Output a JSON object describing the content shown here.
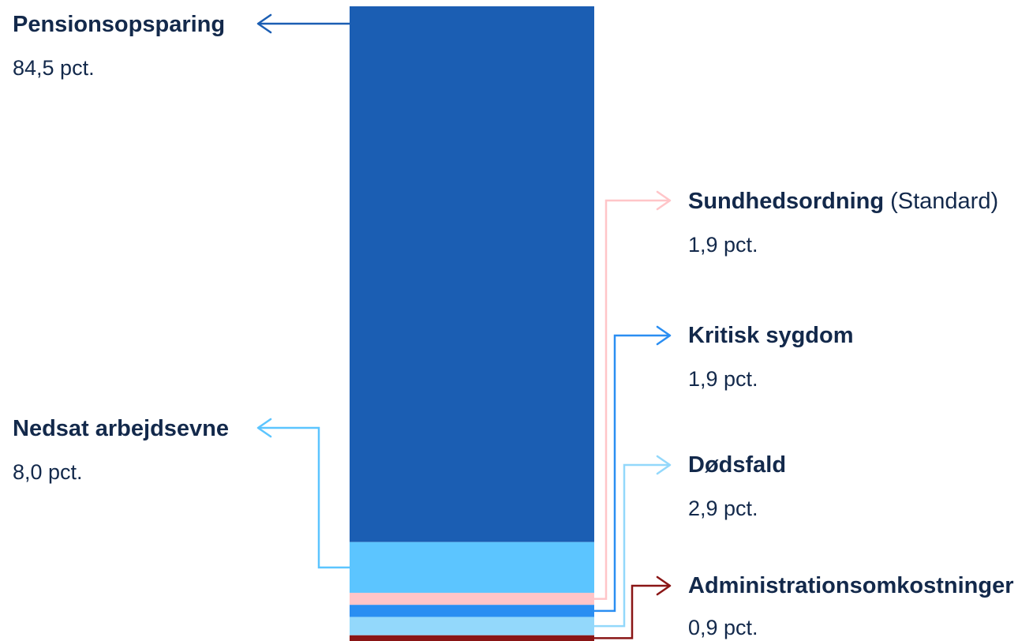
{
  "chart_data": {
    "type": "bar",
    "stacked": true,
    "unit": "pct.",
    "segments": [
      {
        "key": "pension",
        "name": "Pensionsopsparing",
        "note": "",
        "value": 84.5,
        "value_label": "84,5 pct.",
        "color": "#1b5eb3",
        "side": "left"
      },
      {
        "key": "nedsat",
        "name": "Nedsat arbejdsevne",
        "note": "",
        "value": 8.0,
        "value_label": "8,0 pct.",
        "color": "#5cc5ff",
        "side": "left"
      },
      {
        "key": "sundhed",
        "name": "Sundhedsordning",
        "note": "(Standard)",
        "value": 1.9,
        "value_label": "1,9 pct.",
        "color": "#ffc5c8",
        "side": "right"
      },
      {
        "key": "kritisk",
        "name": "Kritisk sygdom",
        "note": "",
        "value": 1.9,
        "value_label": "1,9 pct.",
        "color": "#2a8ef2",
        "side": "right"
      },
      {
        "key": "dodsfald",
        "name": "Dødsfald",
        "note": "",
        "value": 2.9,
        "value_label": "2,9 pct.",
        "color": "#93d8fb",
        "side": "right"
      },
      {
        "key": "admin",
        "name": "Administrationsomkostninger",
        "note": "",
        "value": 0.9,
        "value_label": "0,9 pct.",
        "color": "#8a1515",
        "side": "right"
      }
    ]
  }
}
